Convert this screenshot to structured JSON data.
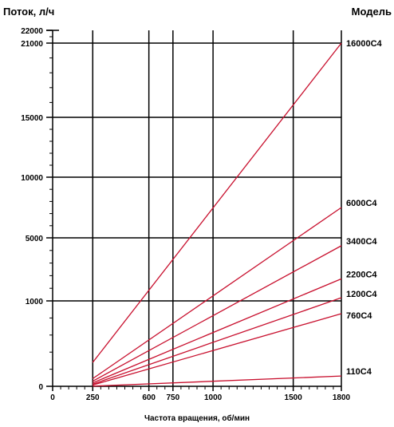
{
  "chart_data": {
    "type": "line",
    "title": "",
    "ylabel": "Поток, л/ч",
    "xlabel": "Частота вращения, об/мин",
    "legend_title": "Модель",
    "x_ticks": [
      0,
      250,
      600,
      750,
      1000,
      1500,
      1800
    ],
    "y_ticks": [
      {
        "label": "0"
      },
      {
        "label": "1000"
      },
      {
        "label": "5000"
      },
      {
        "label": "10000"
      },
      {
        "label": "15000"
      },
      {
        "label": "21000"
      },
      {
        "label": "22000"
      }
    ],
    "y_scale": "piecewise",
    "grid": true,
    "line_color": "#c8102e",
    "xlim": [
      0,
      1800
    ],
    "series": [
      {
        "name": "16000C4",
        "x": [
          250,
          1800
        ],
        "y": [
          280,
          21000
        ]
      },
      {
        "name": "6000C4",
        "x": [
          250,
          1800
        ],
        "y": [
          90,
          7500
        ]
      },
      {
        "name": "3400C4",
        "x": [
          250,
          1800
        ],
        "y": [
          60,
          4500
        ]
      },
      {
        "name": "2200C4",
        "x": [
          250,
          1800
        ],
        "y": [
          40,
          2400
        ]
      },
      {
        "name": "1200C4",
        "x": [
          250,
          1800
        ],
        "y": [
          25,
          1200
        ]
      },
      {
        "name": "760C4",
        "x": [
          250,
          1800
        ],
        "y": [
          15,
          850
        ]
      },
      {
        "name": "110C4",
        "x": [
          250,
          1800
        ],
        "y": [
          2,
          120
        ]
      }
    ]
  }
}
